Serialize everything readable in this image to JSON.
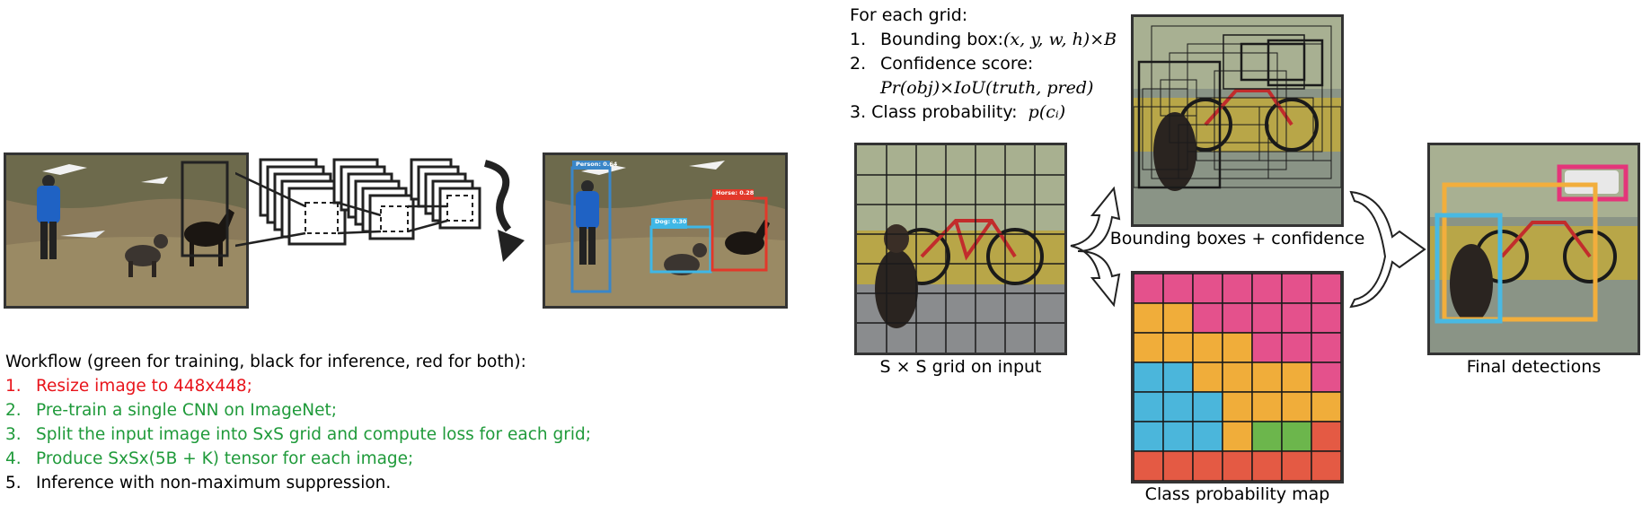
{
  "colors": {
    "red": "#e8141b",
    "green": "#1f9a3a",
    "black": "#000000",
    "person_box": "#3a86c8",
    "dog_box": "#3fb7e6",
    "horse_box": "#e2382a",
    "final_pink": "#e4357a",
    "final_orange": "#f2ae3c",
    "final_cyan": "#49b9e2",
    "prob_pink": "#e4518c",
    "prob_orange": "#f0ad3a",
    "prob_cyan": "#4bb6db",
    "prob_green": "#6cb64c",
    "prob_red": "#e45a44"
  },
  "detections": {
    "person": "Person: 0.64",
    "dog": "Dog: 0.30",
    "horse": "Horse: 0.28"
  },
  "workflow": {
    "title": "Workflow (green for training, black for inference, red for both):",
    "items": [
      {
        "num": "1.",
        "text": "Resize image to 448x448;",
        "color": "#e8141b"
      },
      {
        "num": "2.",
        "text": "Pre-train a single CNN on ImageNet;",
        "color": "#1f9a3a"
      },
      {
        "num": "3.",
        "text": "Split the input image into SxS grid and compute loss for each grid;",
        "color": "#1f9a3a"
      },
      {
        "num": "4.",
        "text": "Produce SxSx(5B + K) tensor for each image;",
        "color": "#1f9a3a"
      },
      {
        "num": "5.",
        "text": "Inference with non-maximum suppression.",
        "color": "#000000"
      }
    ]
  },
  "grid_notes": {
    "heading": "For each grid:",
    "item1_num": "1.",
    "item1_label": "Bounding box: ",
    "item1_math": "(x, y, w, h)×B",
    "item2_num": "2.",
    "item2_label": "Confidence score:",
    "item2_math": "Pr(obj)×IoU(truth, pred)",
    "item3_label": "3. Class probability:  ",
    "item3_math": "p(cᵢ)"
  },
  "captions": {
    "grid_input": "S × S grid on input",
    "bboxes": "Bounding boxes + confidence",
    "prob_map": "Class probability map",
    "final": "Final detections"
  },
  "prob_map": {
    "cols": 7,
    "rows": 7,
    "cells": [
      [
        "pink",
        "pink",
        "pink",
        "pink",
        "pink",
        "pink",
        "pink"
      ],
      [
        "orange",
        "orange",
        "pink",
        "pink",
        "pink",
        "pink",
        "pink"
      ],
      [
        "orange",
        "orange",
        "orange",
        "orange",
        "pink",
        "pink",
        "pink"
      ],
      [
        "cyan",
        "cyan",
        "orange",
        "orange",
        "orange",
        "orange",
        "pink"
      ],
      [
        "cyan",
        "cyan",
        "cyan",
        "orange",
        "orange",
        "orange",
        "orange"
      ],
      [
        "cyan",
        "cyan",
        "cyan",
        "orange",
        "green",
        "green",
        "red"
      ],
      [
        "red",
        "red",
        "red",
        "red",
        "red",
        "red",
        "red"
      ]
    ]
  }
}
